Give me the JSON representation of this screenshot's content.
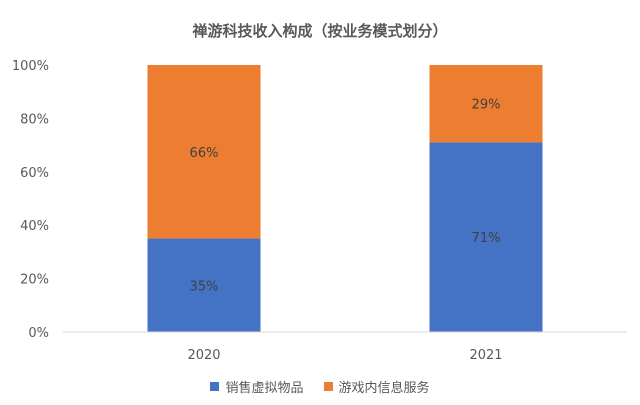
{
  "chart_data": {
    "type": "bar",
    "stacked": true,
    "title": "禅游科技收入构成（按业务模式划分）",
    "categories": [
      "2020",
      "2021"
    ],
    "series": [
      {
        "name": "销售虚拟物品",
        "values": [
          35,
          71
        ],
        "labels": [
          "35%",
          "71%"
        ],
        "color": "#4472C4"
      },
      {
        "name": "游戏内信息服务",
        "values": [
          66,
          29
        ],
        "labels": [
          "66%",
          "29%"
        ],
        "color": "#ED7D31"
      }
    ],
    "y_ticks": [
      "0%",
      "20%",
      "40%",
      "60%",
      "80%",
      "100%"
    ],
    "ylim": [
      0,
      100
    ],
    "grid": false,
    "legend_position": "bottom"
  }
}
